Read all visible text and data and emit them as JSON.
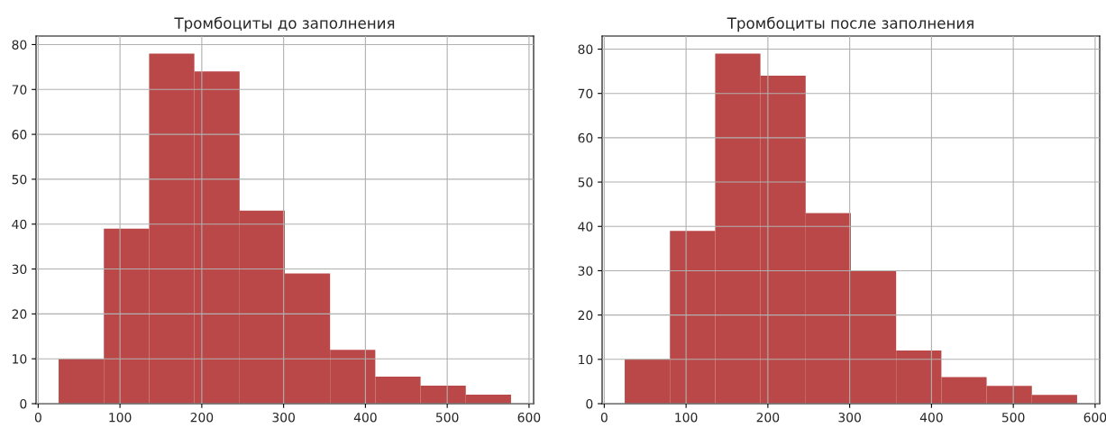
{
  "chart_data": [
    {
      "type": "histogram",
      "title": "Тромбоциты до заполнения",
      "bins": [
        25,
        80.3,
        135.6,
        190.9,
        246.2,
        301.5,
        356.8,
        412.1,
        467.4,
        522.7,
        578
      ],
      "values": [
        10,
        39,
        78,
        74,
        43,
        29,
        12,
        6,
        4,
        2
      ],
      "color": "#bb4848",
      "xlim": [
        -2.6,
        605.6
      ],
      "xticks": [
        0,
        100,
        200,
        300,
        400,
        500,
        600
      ],
      "ylim": [
        0,
        81.9
      ],
      "yticks": [
        0,
        10,
        20,
        30,
        40,
        50,
        60,
        70,
        80
      ],
      "grid": true
    },
    {
      "type": "histogram",
      "title": "Тромбоциты после заполнения",
      "bins": [
        25,
        80.3,
        135.6,
        190.9,
        246.2,
        301.5,
        356.8,
        412.1,
        467.4,
        522.7,
        578
      ],
      "values": [
        10,
        39,
        79,
        74,
        43,
        30,
        12,
        6,
        4,
        2
      ],
      "color": "#bb4848",
      "xlim": [
        -2.6,
        605.6
      ],
      "xticks": [
        0,
        100,
        200,
        300,
        400,
        500,
        600
      ],
      "ylim": [
        0,
        82.95
      ],
      "yticks": [
        0,
        10,
        20,
        30,
        40,
        50,
        60,
        70,
        80
      ],
      "grid": true
    }
  ]
}
